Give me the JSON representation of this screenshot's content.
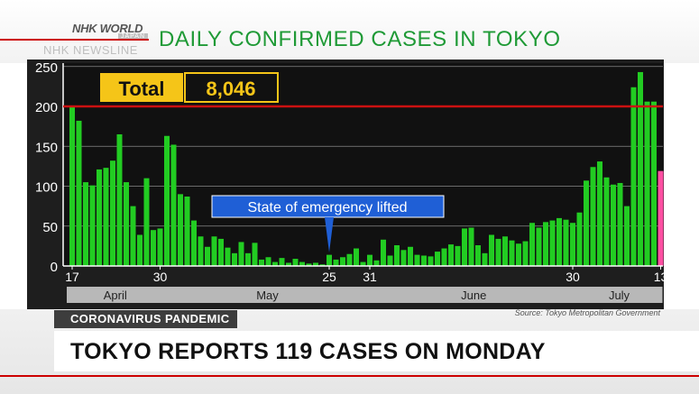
{
  "broadcaster": {
    "logo_text": "NHK WORLD",
    "logo_sub": "JAPAN",
    "watermark": "NHK NEWSLINE"
  },
  "chart_title": "DAILY CONFIRMED CASES IN TOKYO",
  "lower_third": {
    "category": "CORONAVIRUS PANDEMIC",
    "headline": "TOKYO REPORTS 119 CASES ON MONDAY",
    "source": "Source: Tokyo Metropolitan Government"
  },
  "colors": {
    "bar": "#22cc22",
    "highlight_bar": "#ff4fa3",
    "threshold": "#cc1111",
    "plot_bg": "#111111",
    "title_green": "#1f9a36",
    "total_box": "#f5c518",
    "callout": "#1f5fd6"
  },
  "chart_data": {
    "type": "bar",
    "title": "DAILY CONFIRMED CASES IN TOKYO",
    "x_start": "April 17",
    "x_end": "July 13",
    "ylim": [
      0,
      250
    ],
    "yticks": [
      0,
      50,
      100,
      150,
      200,
      250
    ],
    "grid": true,
    "threshold_line": 200,
    "x_tick_labels": [
      {
        "label": "17",
        "index": 0
      },
      {
        "label": "30",
        "index": 13
      },
      {
        "label": "25",
        "index": 38
      },
      {
        "label": "31",
        "index": 44
      },
      {
        "label": "30",
        "index": 74
      },
      {
        "label": "13",
        "index": 87
      }
    ],
    "months": [
      {
        "name": "April",
        "start": 0,
        "end": 13
      },
      {
        "name": "May",
        "start": 14,
        "end": 44
      },
      {
        "name": "June",
        "start": 45,
        "end": 74
      },
      {
        "name": "July",
        "start": 75,
        "end": 87
      }
    ],
    "total": {
      "label": "Total",
      "value": "8,046"
    },
    "annotation": {
      "text": "State of emergency lifted",
      "index": 38
    },
    "highlight_index": 87,
    "values": [
      201,
      182,
      105,
      101,
      121,
      123,
      132,
      165,
      105,
      75,
      39,
      110,
      45,
      47,
      163,
      152,
      90,
      87,
      57,
      37,
      24,
      37,
      34,
      23,
      16,
      30,
      16,
      29,
      8,
      11,
      5,
      10,
      4,
      9,
      5,
      3,
      4,
      2,
      14,
      8,
      11,
      15,
      22,
      5,
      14,
      7,
      33,
      13,
      26,
      20,
      24,
      14,
      13,
      12,
      18,
      22,
      27,
      25,
      47,
      48,
      26,
      16,
      39,
      34,
      37,
      32,
      28,
      31,
      54,
      48,
      55,
      57,
      60,
      58,
      54,
      67,
      107,
      124,
      131,
      111,
      102,
      104,
      75,
      224,
      243,
      206,
      206,
      119
    ]
  }
}
